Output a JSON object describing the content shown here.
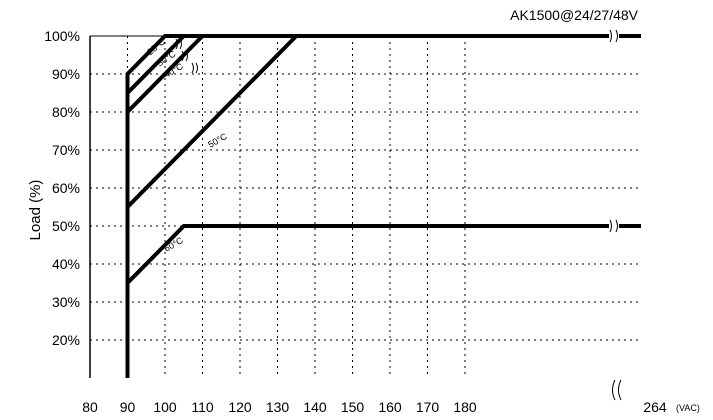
{
  "chart_data": {
    "type": "line",
    "title": "AK1500@24/27/48V",
    "xlabel": "",
    "ylabel": "Load (%)",
    "x_unit": "(VAC)",
    "x_ticks": [
      "80",
      "90",
      "100",
      "110",
      "120",
      "130",
      "140",
      "150",
      "160",
      "170",
      "180",
      "264"
    ],
    "y_ticks": [
      "20%",
      "30%",
      "40%",
      "50%",
      "60%",
      "70%",
      "80%",
      "90%",
      "100%"
    ],
    "xlim": [
      80,
      264
    ],
    "ylim": [
      10,
      100
    ],
    "axis_break": "between 180 and 264",
    "grid": true,
    "series": [
      {
        "name": "25°C",
        "x": [
          90,
          90,
          90,
          100,
          264
        ],
        "y": [
          10,
          90,
          90,
          100,
          100
        ]
      },
      {
        "name": "30°C",
        "x": [
          90,
          90,
          90,
          105,
          264
        ],
        "y": [
          10,
          85,
          85,
          100,
          100
        ]
      },
      {
        "name": "40°C",
        "x": [
          90,
          90,
          90,
          110,
          264
        ],
        "y": [
          10,
          80,
          80,
          100,
          100
        ]
      },
      {
        "name": "50°C",
        "x": [
          90,
          90,
          90,
          135,
          264
        ],
        "y": [
          10,
          55,
          55,
          100,
          100
        ]
      },
      {
        "name": "60°C",
        "x": [
          90,
          90,
          90,
          105,
          264
        ],
        "y": [
          10,
          35,
          35,
          50,
          50
        ]
      }
    ]
  }
}
